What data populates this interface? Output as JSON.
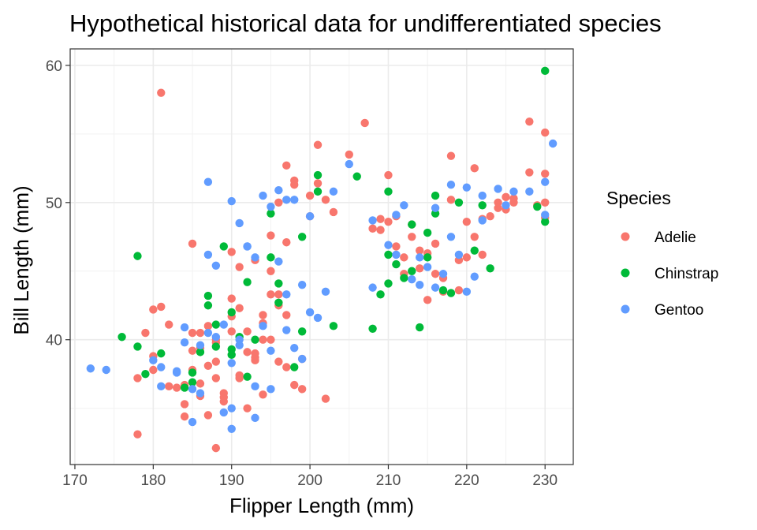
{
  "chart_data": {
    "type": "scatter",
    "title": "Hypothetical historical data for undifferentiated species",
    "xlabel": "Flipper Length (mm)",
    "ylabel": "Bill Length (mm)",
    "xlim": [
      169.4,
      233.6
    ],
    "ylim": [
      30.9,
      61.2
    ],
    "xticks": [
      170,
      180,
      190,
      200,
      210,
      220,
      230
    ],
    "yticks": [
      40,
      50,
      60
    ],
    "xtick_labels": [
      "170",
      "180",
      "190",
      "200",
      "210",
      "220",
      "230"
    ],
    "ytick_labels": [
      "40",
      "50",
      "60"
    ],
    "grid": true,
    "legend": {
      "title": "Species",
      "position": "right"
    },
    "series": [
      {
        "name": "Adelie",
        "color": "#F8766D",
        "x": [
          181,
          178,
          180,
          181,
          182,
          184,
          185,
          186,
          187,
          188,
          189,
          190,
          191,
          192,
          193,
          194,
          195,
          196,
          197,
          198,
          199,
          200,
          201,
          202,
          203,
          205,
          207,
          209,
          210,
          211,
          212,
          213,
          214,
          215,
          216,
          217,
          218,
          219,
          220,
          221,
          222,
          223,
          224,
          225,
          226,
          228,
          229,
          230,
          230,
          179,
          183,
          185,
          186,
          187,
          188,
          189,
          190,
          191,
          192,
          193,
          194,
          195,
          196,
          197,
          198,
          178,
          180,
          182,
          184,
          185,
          186,
          187,
          188,
          189,
          190,
          191,
          192,
          193,
          194,
          195,
          196,
          197,
          199,
          200,
          201,
          202,
          208,
          209,
          210,
          211,
          212,
          213,
          214,
          215,
          216,
          217,
          218,
          219,
          220,
          221,
          222,
          224,
          225,
          226,
          228,
          230,
          230,
          180,
          184,
          186,
          188,
          190,
          193,
          195,
          197,
          185,
          188,
          191,
          194,
          196,
          198
        ],
        "y": [
          58.0,
          33.1,
          38.8,
          42.4,
          41.1,
          34.4,
          47.0,
          36.8,
          38.1,
          32.1,
          35.8,
          46.4,
          37.4,
          35.0,
          45.8,
          40.0,
          47.6,
          50.0,
          52.7,
          51.3,
          38.6,
          49.0,
          54.2,
          35.7,
          49.3,
          53.5,
          55.8,
          48.0,
          52.0,
          49.0,
          46.0,
          47.5,
          46.5,
          42.9,
          47.0,
          44.5,
          53.4,
          45.8,
          46.0,
          52.5,
          48.8,
          49.0,
          50.0,
          49.5,
          50.0,
          52.2,
          49.8,
          55.1,
          52.1,
          40.5,
          36.5,
          37.8,
          39.4,
          41.0,
          40.0,
          35.5,
          43.0,
          42.3,
          40.6,
          38.7,
          41.8,
          45.0,
          42.5,
          47.1,
          51.6,
          37.2,
          42.2,
          36.6,
          36.7,
          39.2,
          35.9,
          34.5,
          37.2,
          36.1,
          41.7,
          45.3,
          39.1,
          38.5,
          36.0,
          40.0,
          43.3,
          41.8,
          36.4,
          50.5,
          51.4,
          50.2,
          48.1,
          48.8,
          48.6,
          46.8,
          44.8,
          48.4,
          45.2,
          46.3,
          44.8,
          43.5,
          50.2,
          43.6,
          48.6,
          47.5,
          46.2,
          49.6,
          50.4,
          50.3,
          55.9,
          50.0,
          48.9,
          37.8,
          35.3,
          40.5,
          38.4,
          40.6,
          39.0,
          43.3,
          38.0,
          40.5,
          39.8,
          37.2,
          41.2,
          38.4,
          36.7
        ]
      },
      {
        "name": "Chinstrap",
        "color": "#00BA38",
        "x": [
          176,
          178,
          178,
          179,
          181,
          184,
          185,
          186,
          187,
          187,
          188,
          189,
          190,
          190,
          191,
          192,
          193,
          195,
          196,
          198,
          199,
          201,
          201,
          203,
          206,
          208,
          209,
          210,
          210,
          211,
          213,
          214,
          215,
          216,
          217,
          218,
          219,
          221,
          223,
          230,
          230,
          185,
          188,
          190,
          192,
          195,
          196,
          199,
          210,
          212,
          213,
          215,
          222,
          229,
          216
        ],
        "y": [
          40.2,
          39.5,
          46.1,
          37.5,
          39.0,
          36.5,
          37.6,
          39.1,
          42.5,
          43.2,
          39.5,
          46.8,
          42.0,
          39.3,
          40.2,
          37.3,
          40.0,
          49.2,
          44.1,
          38.0,
          47.5,
          52.0,
          50.8,
          41.0,
          51.9,
          40.8,
          43.3,
          50.8,
          44.1,
          45.5,
          48.4,
          40.9,
          46.0,
          50.5,
          43.6,
          43.4,
          50.0,
          46.5,
          45.2,
          59.6,
          48.6,
          36.9,
          41.1,
          38.9,
          44.2,
          46.0,
          42.7,
          40.6,
          46.2,
          44.5,
          45.0,
          47.8,
          49.8,
          49.7,
          49.2
        ]
      },
      {
        "name": "Gentoo",
        "color": "#619CFF",
        "x": [
          172,
          174,
          181,
          183,
          184,
          185,
          186,
          187,
          187,
          188,
          189,
          190,
          190,
          191,
          192,
          193,
          194,
          195,
          196,
          197,
          198,
          199,
          200,
          202,
          205,
          208,
          210,
          211,
          212,
          213,
          214,
          215,
          216,
          217,
          218,
          219,
          220,
          221,
          222,
          224,
          225,
          226,
          228,
          230,
          231,
          181,
          184,
          186,
          188,
          190,
          191,
          193,
          195,
          197,
          180,
          183,
          185,
          187,
          190,
          192,
          194,
          196,
          198,
          200,
          189,
          191,
          193,
          195,
          197,
          199,
          201,
          203,
          208,
          211,
          214,
          216,
          218,
          220,
          222,
          230
        ],
        "y": [
          37.9,
          37.8,
          38.0,
          37.7,
          40.9,
          34.0,
          39.6,
          46.2,
          51.5,
          45.4,
          41.1,
          35.0,
          50.1,
          48.5,
          46.8,
          46.0,
          50.5,
          49.7,
          45.7,
          50.2,
          39.4,
          44.0,
          42.0,
          43.5,
          52.8,
          48.7,
          46.9,
          46.2,
          49.8,
          44.4,
          44.0,
          45.3,
          49.6,
          44.8,
          51.3,
          46.2,
          51.1,
          44.6,
          50.5,
          51.0,
          49.8,
          50.8,
          50.8,
          51.5,
          54.3,
          36.6,
          39.8,
          36.1,
          40.2,
          33.5,
          39.6,
          34.3,
          36.4,
          43.3,
          38.5,
          37.6,
          36.4,
          40.5,
          38.3,
          46.8,
          41.0,
          50.9,
          50.2,
          49.0,
          34.7,
          40.0,
          36.6,
          39.2,
          40.7,
          38.6,
          41.6,
          50.8,
          43.8,
          49.1,
          46.0,
          43.8,
          47.5,
          43.5,
          48.7,
          49.1
        ]
      }
    ]
  }
}
